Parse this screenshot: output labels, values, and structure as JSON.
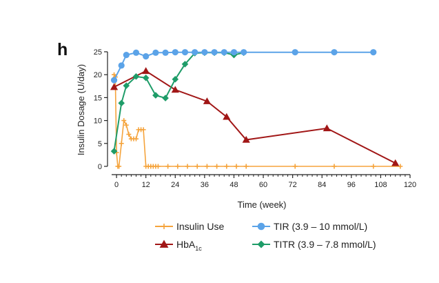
{
  "panel_label": "h",
  "chart_data": {
    "type": "line",
    "title": "",
    "xlabel": "Time (week)",
    "ylabel": "Insulin Dosage (U/day)",
    "xlim": [
      -2,
      120
    ],
    "ylim": [
      0,
      25
    ],
    "xticks": [
      0,
      12,
      24,
      36,
      48,
      60,
      72,
      84,
      96,
      108,
      120
    ],
    "xtick_labels": [
      "0",
      "12",
      "24",
      "36",
      "48",
      "60",
      "72",
      "84",
      "96",
      "108",
      "120"
    ],
    "yticks": [
      0,
      5,
      10,
      15,
      20,
      25
    ],
    "ytick_labels": [
      "0",
      "5",
      "10",
      "15",
      "20",
      "25"
    ],
    "grid": false,
    "series": [
      {
        "name": "Insulin Use",
        "legend": "Insulin Use",
        "color": "#f5a33b",
        "marker": "plus",
        "x": [
          -1,
          -0.5,
          0,
          0.5,
          1,
          2,
          3,
          4,
          5,
          6,
          7,
          8,
          9,
          10,
          11,
          12,
          13,
          14,
          15,
          16,
          17,
          21,
          25,
          29,
          33,
          37,
          41,
          45,
          49,
          53,
          73,
          89,
          105,
          116
        ],
        "y": [
          20,
          19.5,
          3,
          0,
          0,
          5,
          10,
          9,
          7,
          6,
          6,
          6,
          8,
          8,
          8,
          0,
          0,
          0,
          0,
          0,
          0,
          0,
          0,
          0,
          0,
          0,
          0,
          0,
          0,
          0,
          0,
          0,
          0,
          0
        ]
      },
      {
        "name": "TIR",
        "legend": "TIR (3.9 – 10 mmol/L)",
        "color": "#5ba3e8",
        "marker": "circle",
        "x": [
          -1,
          2,
          4,
          8,
          12,
          16,
          20,
          24,
          28,
          32,
          36,
          40,
          44,
          48,
          52,
          73,
          89,
          105
        ],
        "y": [
          18.8,
          22,
          24.3,
          24.8,
          24,
          24.8,
          24.8,
          24.9,
          24.9,
          24.9,
          24.9,
          24.9,
          24.9,
          24.9,
          24.9,
          24.9,
          24.9,
          24.9
        ]
      },
      {
        "name": "HbA1c",
        "legend": "HbA",
        "legend_sub": "1c",
        "color": "#a11616",
        "marker": "triangle",
        "x": [
          -1,
          12,
          24,
          37,
          45,
          53,
          86,
          114
        ],
        "y": [
          17.3,
          20.8,
          16.7,
          14.2,
          10.8,
          5.8,
          8.3,
          0.7
        ]
      },
      {
        "name": "TITR",
        "legend": "TITR (3.9 – 7.8 mmol/L)",
        "color": "#1e9c68",
        "marker": "diamond",
        "x": [
          -1,
          2,
          4,
          8,
          12,
          16,
          20,
          24,
          28,
          32,
          36,
          40,
          44,
          48,
          52
        ],
        "y": [
          3.3,
          13.8,
          17.6,
          19.6,
          19.3,
          15.5,
          14.9,
          19,
          22.3,
          24.7,
          24.8,
          24.8,
          24.8,
          24.3,
          24.8
        ]
      }
    ]
  }
}
